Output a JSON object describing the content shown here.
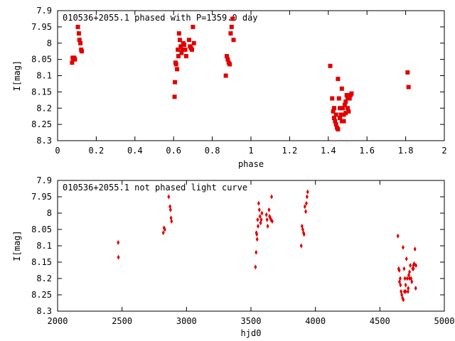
{
  "chart_data": [
    {
      "type": "scatter",
      "title": "010536+2055.1 phased with P=1359.0 day",
      "xlabel": "phase",
      "ylabel": "I[mag]",
      "xlim": [
        0,
        2
      ],
      "ylim": [
        7.9,
        8.3
      ],
      "y_inverted": true,
      "grid": false,
      "xticks": [
        "0",
        "0.2",
        "0.4",
        "0.6",
        "0.8",
        "1",
        "1.2",
        "1.4",
        "1.6",
        "1.8",
        "2"
      ],
      "yticks": [
        "7.9",
        "7.95",
        "8",
        "8.05",
        "8.1",
        "8.15",
        "8.2",
        "8.25",
        "8.3"
      ],
      "marker": "filled-square",
      "color": "#e00000",
      "series": [
        {
          "x": [
            0.075,
            0.078,
            0.082,
            0.086,
            0.09,
            0.105,
            0.11,
            0.113,
            0.118,
            0.122,
            0.125,
            0.605,
            0.607,
            0.61,
            0.613,
            0.618,
            0.622,
            0.625,
            0.628,
            0.632,
            0.637,
            0.641,
            0.645,
            0.65,
            0.655,
            0.66,
            0.665,
            0.68,
            0.685,
            0.69,
            0.695,
            0.7,
            0.705,
            0.87,
            0.875,
            0.88,
            0.885,
            0.89,
            0.895,
            0.9,
            0.905,
            0.91,
            1.41,
            1.42,
            1.425,
            1.43,
            1.435,
            1.44,
            1.445,
            1.45,
            1.455,
            1.46,
            1.465,
            1.47,
            1.475,
            1.48,
            1.485,
            1.49,
            1.495,
            1.5,
            1.505,
            1.51,
            1.515,
            1.52,
            1.45,
            1.46,
            1.44,
            1.47,
            1.43,
            1.48,
            1.49,
            1.5,
            1.81,
            1.815
          ],
          "y": [
            8.06,
            8.045,
            8.05,
            8.045,
            8.05,
            7.95,
            7.97,
            7.99,
            8.0,
            8.02,
            8.025,
            8.165,
            8.12,
            8.06,
            8.065,
            8.08,
            8.02,
            8.04,
            7.97,
            7.99,
            8.01,
            8.03,
            8.02,
            8.0,
            8.005,
            8.02,
            8.04,
            7.99,
            8.01,
            8.015,
            8.02,
            7.95,
            8.0,
            8.1,
            8.04,
            8.05,
            8.06,
            8.065,
            7.97,
            7.95,
            7.925,
            7.99,
            8.07,
            8.17,
            8.21,
            8.2,
            8.24,
            8.25,
            8.26,
            8.265,
            8.17,
            8.2,
            8.22,
            8.14,
            8.2,
            8.24,
            8.19,
            8.18,
            8.16,
            8.2,
            8.21,
            8.17,
            8.16,
            8.155,
            8.11,
            8.23,
            8.22,
            8.24,
            8.23,
            8.22,
            8.215,
            8.17,
            8.09,
            8.135
          ]
        }
      ]
    },
    {
      "type": "scatter",
      "title": "010536+2055.1 not phased light curve",
      "xlabel": "hjd0",
      "ylabel": "I[mag]",
      "xlim": [
        2000,
        5000
      ],
      "ylim": [
        7.9,
        8.3
      ],
      "y_inverted": true,
      "grid": false,
      "xticks": [
        "2000",
        "2500",
        "3000",
        "3500",
        "4000",
        "4500",
        "5000"
      ],
      "yticks": [
        "7.9",
        "7.95",
        "8",
        "8.05",
        "8.1",
        "8.15",
        "8.2",
        "8.25",
        "8.3"
      ],
      "marker": "small-diamond",
      "color": "#e00000",
      "series": [
        {
          "x": [
            2470,
            2472,
            2820,
            2826,
            2832,
            2862,
            2872,
            2876,
            2880,
            2884,
            3535,
            3540,
            3542,
            3545,
            3548,
            3552,
            3555,
            3560,
            3565,
            3570,
            3575,
            3580,
            3585,
            3620,
            3625,
            3630,
            3640,
            3645,
            3650,
            3655,
            3660,
            3665,
            3890,
            3896,
            3902,
            3908,
            3912,
            3918,
            3925,
            3930,
            3935,
            3940,
            4640,
            4646,
            4652,
            4658,
            4664,
            4670,
            4676,
            4682,
            4688,
            4694,
            4700,
            4706,
            4712,
            4718,
            4724,
            4730,
            4736,
            4742,
            4748,
            4754,
            4760,
            4766,
            4772,
            4778,
            4660,
            4690,
            4720,
            4650,
            4680,
            4700,
            4730,
            4760,
            4780
          ],
          "y": [
            8.09,
            8.135,
            8.06,
            8.045,
            8.05,
            7.95,
            7.98,
            7.99,
            8.015,
            8.025,
            8.165,
            8.12,
            8.06,
            8.065,
            8.08,
            8.02,
            8.04,
            7.97,
            7.99,
            8.01,
            8.03,
            8.02,
            8.0,
            8.005,
            8.02,
            8.04,
            7.99,
            8.01,
            8.015,
            8.02,
            7.95,
            8.025,
            8.1,
            8.04,
            8.05,
            8.06,
            8.065,
            7.98,
            7.995,
            7.97,
            7.95,
            7.935,
            8.07,
            8.17,
            8.21,
            8.2,
            8.24,
            8.25,
            8.26,
            8.265,
            8.17,
            8.2,
            8.22,
            8.14,
            8.2,
            8.24,
            8.19,
            8.18,
            8.16,
            8.2,
            8.21,
            8.17,
            8.16,
            8.155,
            8.11,
            8.23,
            8.22,
            8.24,
            8.23,
            8.175,
            8.105,
            8.24,
            8.2,
            8.17,
            8.16
          ]
        }
      ]
    }
  ]
}
